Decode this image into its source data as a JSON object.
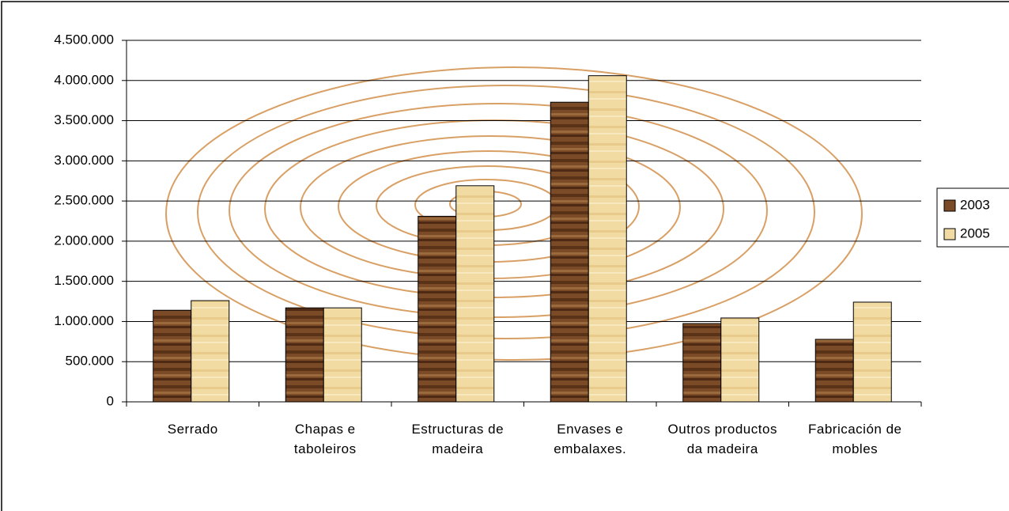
{
  "chart_data": {
    "type": "bar",
    "categories": [
      "Serrado",
      "Chapas e taboleiros",
      "Estructuras de madeira",
      "Envases e embalaxes.",
      "Outros productos da madeira",
      "Fabricación de mobles"
    ],
    "series": [
      {
        "name": "2003",
        "color": "#7b4a26",
        "values": [
          1140000,
          1170000,
          2310000,
          3730000,
          975000,
          778000
        ]
      },
      {
        "name": "2005",
        "color": "#f2dba2",
        "values": [
          1260000,
          1170000,
          2690000,
          4060000,
          1044000,
          1241000
        ]
      }
    ],
    "ylim": [
      0,
      4500000
    ],
    "yticks": [
      0,
      {
        "value": 500000,
        "label": "500.000"
      },
      {
        "value": 1000000,
        "label": "1.000.000"
      },
      {
        "value": 1500000,
        "label": "1.500.000"
      },
      {
        "value": 2000000,
        "label": "2.000.000"
      },
      {
        "value": 2500000,
        "label": "2.500.000"
      },
      {
        "value": 3000000,
        "label": "3.000.000"
      },
      {
        "value": 3500000,
        "label": "3.500.000"
      },
      {
        "value": 4000000,
        "label": "4.000.000"
      },
      {
        "value": 4500000,
        "label": "4.500.000"
      }
    ],
    "grid": true,
    "legend": "right"
  }
}
